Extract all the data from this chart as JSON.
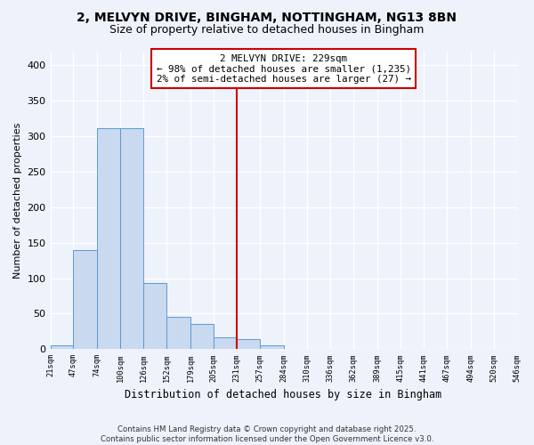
{
  "title": "2, MELVYN DRIVE, BINGHAM, NOTTINGHAM, NG13 8BN",
  "subtitle": "Size of property relative to detached houses in Bingham",
  "xlabel": "Distribution of detached houses by size in Bingham",
  "ylabel": "Number of detached properties",
  "bar_edges": [
    21,
    47,
    74,
    100,
    126,
    152,
    179,
    205,
    231,
    257,
    284,
    310,
    336,
    362,
    389,
    415,
    441,
    467,
    494,
    520,
    546
  ],
  "bar_heights": [
    5,
    140,
    312,
    311,
    93,
    46,
    35,
    17,
    14,
    6,
    0,
    0,
    0,
    0,
    0,
    0,
    0,
    0,
    0,
    0
  ],
  "bar_color": "#c8d9f0",
  "bar_edge_color": "#5b9bd5",
  "vline_x": 231,
  "vline_color": "#cc0000",
  "annotation_line1": "2 MELVYN DRIVE: 229sqm",
  "annotation_line2": "← 98% of detached houses are smaller (1,235)",
  "annotation_line3": "2% of semi-detached houses are larger (27) →",
  "annotation_box_color": "#ffffff",
  "annotation_box_edge_color": "#cc0000",
  "ylim": [
    0,
    420
  ],
  "yticks": [
    0,
    50,
    100,
    150,
    200,
    250,
    300,
    350,
    400
  ],
  "tick_labels": [
    "21sqm",
    "47sqm",
    "74sqm",
    "100sqm",
    "126sqm",
    "152sqm",
    "179sqm",
    "205sqm",
    "231sqm",
    "257sqm",
    "284sqm",
    "310sqm",
    "336sqm",
    "362sqm",
    "389sqm",
    "415sqm",
    "441sqm",
    "467sqm",
    "494sqm",
    "520sqm",
    "546sqm"
  ],
  "footer_text": "Contains HM Land Registry data © Crown copyright and database right 2025.\nContains public sector information licensed under the Open Government Licence v3.0.",
  "bg_color": "#eef2fb",
  "grid_color": "#ffffff"
}
